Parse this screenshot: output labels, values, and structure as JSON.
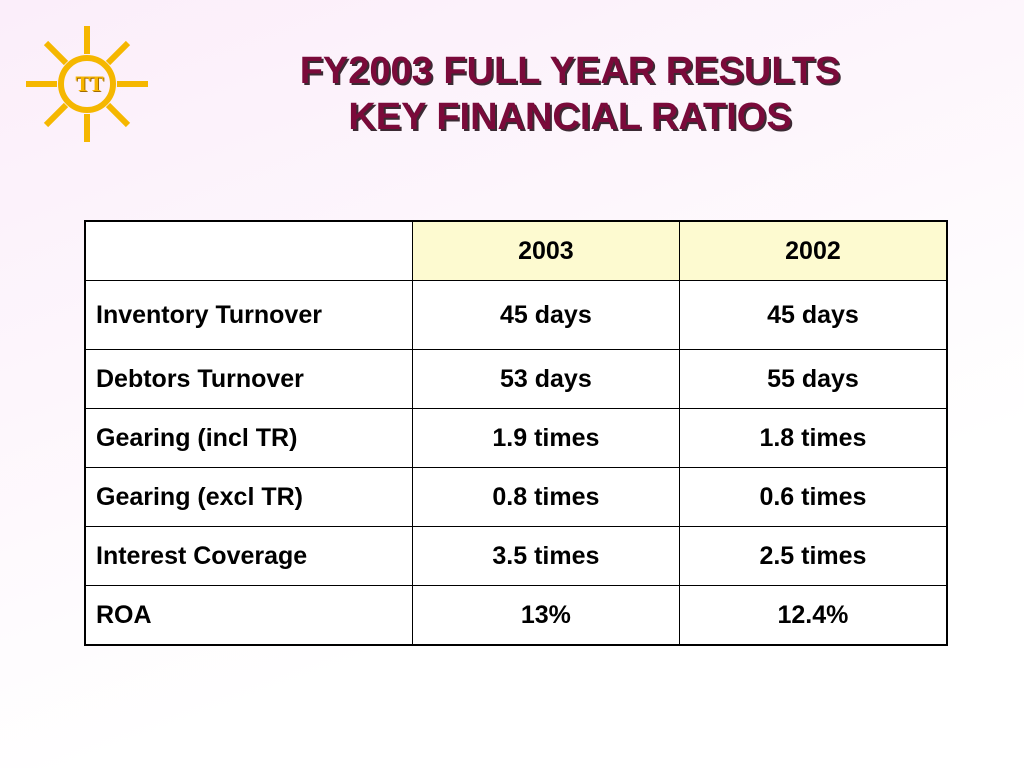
{
  "logo": {
    "icon": "sun-icon",
    "text": "TT",
    "color": "#f5b700"
  },
  "title": {
    "line1": "FY2003 FULL YEAR RESULTS",
    "line2": "KEY FINANCIAL RATIOS",
    "color": "#7a0a3a"
  },
  "table": {
    "header_fill": "#fdfad0",
    "columns": [
      "",
      "2003",
      "2002"
    ],
    "rows": [
      {
        "label": "Inventory Turnover",
        "v2003": "45 days",
        "v2002": "45 days"
      },
      {
        "label": "Debtors Turnover",
        "v2003": "53 days",
        "v2002": "55 days"
      },
      {
        "label": "Gearing (incl TR)",
        "v2003": "1.9 times",
        "v2002": "1.8 times"
      },
      {
        "label": "Gearing (excl TR)",
        "v2003": "0.8 times",
        "v2002": "0.6 times"
      },
      {
        "label": "Interest Coverage",
        "v2003": "3.5 times",
        "v2002": "2.5 times"
      },
      {
        "label": "ROA",
        "v2003": "13%",
        "v2002": "12.4%"
      }
    ]
  }
}
